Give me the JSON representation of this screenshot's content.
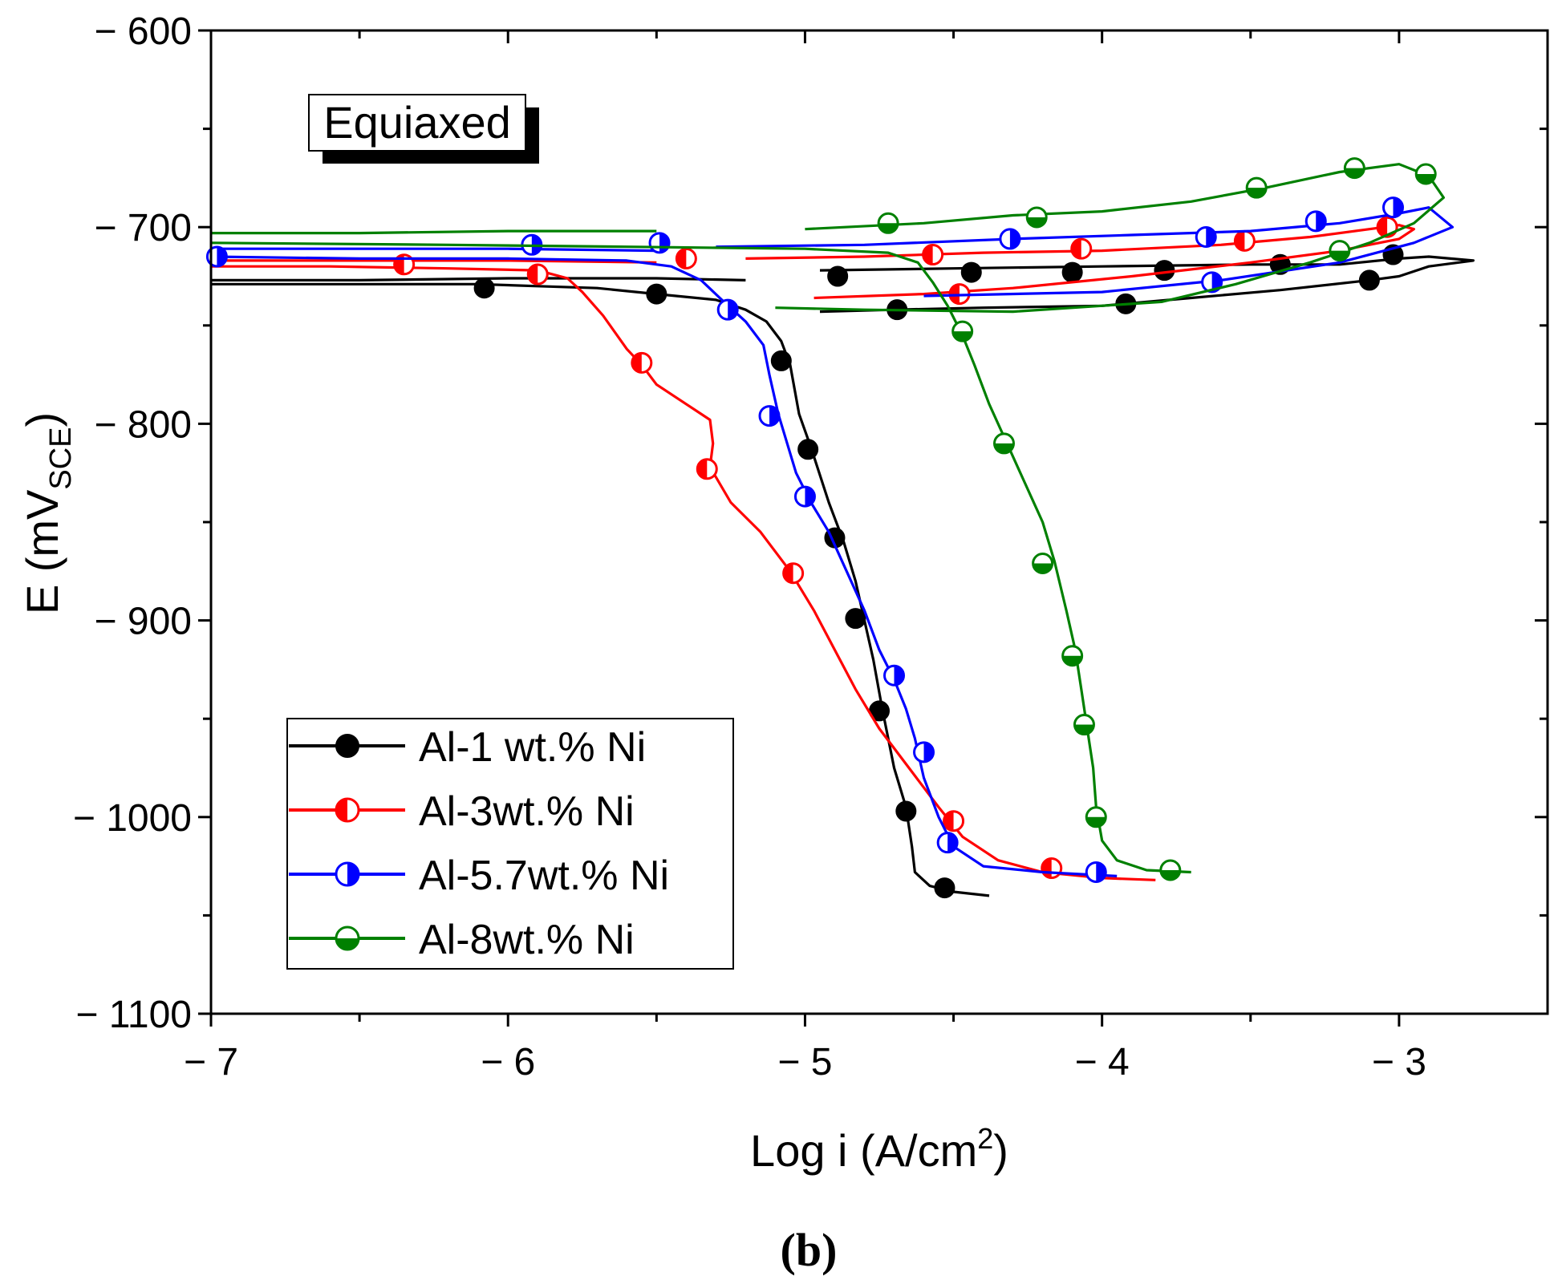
{
  "chart_data": {
    "type": "line",
    "title": "",
    "inset_label": "Equiaxed",
    "panel_label": "(b)",
    "xlabel_pre": "Log i (A/cm",
    "xlabel_sup": "2",
    "xlabel_post": ")",
    "ylabel_pre": "E (mV",
    "ylabel_sub": "SCE",
    "ylabel_post": ")",
    "xlim": [
      -7,
      -2.5
    ],
    "ylim": [
      -1100,
      -600
    ],
    "x_ticks": [
      -7,
      -6,
      -5,
      -4,
      -3
    ],
    "x_tick_labels": [
      "− 7",
      "− 6",
      "− 5",
      "− 4",
      "− 3"
    ],
    "y_ticks": [
      -600,
      -700,
      -800,
      -900,
      -1000,
      -1100
    ],
    "y_tick_labels": [
      "− 600",
      "− 700",
      "− 800",
      "− 900",
      "− 1000",
      "− 1100"
    ],
    "legend_position": "bottom-left",
    "series": [
      {
        "name": "Al-1 wt.% Ni",
        "color": "#000000",
        "marker": "filled",
        "forward": [
          [
            -4.38,
            -1040
          ],
          [
            -4.5,
            -1038
          ],
          [
            -4.58,
            -1035
          ],
          [
            -4.63,
            -1028
          ],
          [
            -4.64,
            -1015
          ],
          [
            -4.66,
            -995
          ],
          [
            -4.7,
            -975
          ],
          [
            -4.74,
            -945
          ],
          [
            -4.77,
            -920
          ],
          [
            -4.8,
            -900
          ],
          [
            -4.83,
            -880
          ],
          [
            -4.87,
            -860
          ],
          [
            -4.92,
            -840
          ],
          [
            -4.98,
            -812
          ],
          [
            -5.02,
            -795
          ],
          [
            -5.05,
            -770
          ],
          [
            -5.08,
            -758
          ],
          [
            -5.13,
            -748
          ],
          [
            -5.2,
            -742
          ],
          [
            -5.3,
            -737
          ],
          [
            -5.5,
            -734
          ],
          [
            -5.7,
            -731
          ],
          [
            -5.9,
            -730
          ],
          [
            -6.1,
            -729
          ],
          [
            -6.5,
            -729
          ],
          [
            -7.0,
            -729
          ]
        ],
        "reverse": [
          [
            -5.2,
            -727
          ],
          [
            -5.5,
            -726
          ],
          [
            -6.0,
            -726
          ],
          [
            -6.5,
            -727
          ],
          [
            -7.0,
            -727
          ]
        ],
        "upper": [
          [
            -4.95,
            -722
          ],
          [
            -4.5,
            -721
          ],
          [
            -4.0,
            -720
          ],
          [
            -3.5,
            -719
          ],
          [
            -3.2,
            -719
          ],
          [
            -3.0,
            -716
          ],
          [
            -2.9,
            -715
          ],
          [
            -2.75,
            -717
          ],
          [
            -2.9,
            -720
          ],
          [
            -3.0,
            -725
          ],
          [
            -3.1,
            -727
          ],
          [
            -3.4,
            -732
          ],
          [
            -3.7,
            -736
          ],
          [
            -4.0,
            -740
          ],
          [
            -4.4,
            -741
          ],
          [
            -4.7,
            -742
          ],
          [
            -4.95,
            -743
          ]
        ],
        "markers": [
          [
            -6.08,
            -731
          ],
          [
            -5.5,
            -734
          ],
          [
            -5.08,
            -768
          ],
          [
            -4.99,
            -813
          ],
          [
            -4.9,
            -858
          ],
          [
            -4.83,
            -899
          ],
          [
            -4.75,
            -946
          ],
          [
            -4.66,
            -997
          ],
          [
            -4.53,
            -1036
          ],
          [
            -4.89,
            -725
          ],
          [
            -4.44,
            -723
          ],
          [
            -4.1,
            -723
          ],
          [
            -3.79,
            -722
          ],
          [
            -3.4,
            -719
          ],
          [
            -3.02,
            -714
          ],
          [
            -3.1,
            -727
          ],
          [
            -3.92,
            -739
          ],
          [
            -4.69,
            -742
          ]
        ]
      },
      {
        "name": "Al-3wt.% Ni",
        "color": "#ff0000",
        "marker": "half-left",
        "forward": [
          [
            -3.82,
            -1032
          ],
          [
            -4.0,
            -1031
          ],
          [
            -4.2,
            -1028
          ],
          [
            -4.35,
            -1022
          ],
          [
            -4.47,
            -1010
          ],
          [
            -4.55,
            -995
          ],
          [
            -4.65,
            -975
          ],
          [
            -4.75,
            -955
          ],
          [
            -4.83,
            -935
          ],
          [
            -4.9,
            -915
          ],
          [
            -4.97,
            -895
          ],
          [
            -5.05,
            -875
          ],
          [
            -5.15,
            -855
          ],
          [
            -5.25,
            -840
          ],
          [
            -5.32,
            -822
          ],
          [
            -5.31,
            -810
          ],
          [
            -5.32,
            -798
          ],
          [
            -5.4,
            -790
          ],
          [
            -5.5,
            -780
          ],
          [
            -5.55,
            -770
          ],
          [
            -5.6,
            -762
          ],
          [
            -5.68,
            -745
          ],
          [
            -5.75,
            -733
          ],
          [
            -5.8,
            -726
          ],
          [
            -5.9,
            -722
          ],
          [
            -6.2,
            -721
          ],
          [
            -6.6,
            -720
          ],
          [
            -7.0,
            -720
          ]
        ],
        "reverse": [
          [
            -5.5,
            -718
          ],
          [
            -6.0,
            -717
          ],
          [
            -6.5,
            -717
          ],
          [
            -7.0,
            -717
          ]
        ],
        "upper": [
          [
            -5.2,
            -716
          ],
          [
            -4.8,
            -715
          ],
          [
            -4.4,
            -713
          ],
          [
            -4.0,
            -712
          ],
          [
            -3.6,
            -709
          ],
          [
            -3.3,
            -705
          ],
          [
            -3.1,
            -701
          ],
          [
            -3.0,
            -699
          ],
          [
            -2.95,
            -701
          ],
          [
            -3.0,
            -706
          ],
          [
            -3.2,
            -712
          ],
          [
            -3.5,
            -718
          ],
          [
            -3.9,
            -725
          ],
          [
            -4.3,
            -731
          ],
          [
            -4.6,
            -734
          ],
          [
            -4.97,
            -736
          ]
        ],
        "markers": [
          [
            -6.35,
            -719
          ],
          [
            -5.9,
            -724
          ],
          [
            -5.55,
            -769
          ],
          [
            -5.33,
            -823
          ],
          [
            -5.04,
            -876
          ],
          [
            -4.5,
            -1002
          ],
          [
            -4.17,
            -1026
          ],
          [
            -5.4,
            -716
          ],
          [
            -4.57,
            -714
          ],
          [
            -4.07,
            -711
          ],
          [
            -3.52,
            -707
          ],
          [
            -3.04,
            -700
          ],
          [
            -4.48,
            -734
          ]
        ]
      },
      {
        "name": "Al-5.7wt.% Ni",
        "color": "#0000ff",
        "marker": "half-right",
        "forward": [
          [
            -3.95,
            -1030
          ],
          [
            -4.2,
            -1028
          ],
          [
            -4.4,
            -1025
          ],
          [
            -4.5,
            -1015
          ],
          [
            -4.55,
            -1000
          ],
          [
            -4.6,
            -980
          ],
          [
            -4.63,
            -960
          ],
          [
            -4.66,
            -945
          ],
          [
            -4.7,
            -930
          ],
          [
            -4.75,
            -915
          ],
          [
            -4.8,
            -895
          ],
          [
            -4.86,
            -875
          ],
          [
            -4.92,
            -855
          ],
          [
            -4.98,
            -840
          ],
          [
            -5.03,
            -825
          ],
          [
            -5.06,
            -810
          ],
          [
            -5.09,
            -795
          ],
          [
            -5.12,
            -775
          ],
          [
            -5.14,
            -760
          ],
          [
            -5.2,
            -748
          ],
          [
            -5.28,
            -737
          ],
          [
            -5.35,
            -727
          ],
          [
            -5.45,
            -720
          ],
          [
            -5.6,
            -717
          ],
          [
            -6.0,
            -716
          ],
          [
            -6.5,
            -716
          ],
          [
            -7.0,
            -715
          ]
        ],
        "reverse": [
          [
            -5.5,
            -712
          ],
          [
            -6.0,
            -711
          ],
          [
            -6.5,
            -711
          ],
          [
            -7.0,
            -711
          ]
        ],
        "upper": [
          [
            -5.3,
            -710
          ],
          [
            -4.8,
            -709
          ],
          [
            -4.3,
            -706
          ],
          [
            -3.9,
            -704
          ],
          [
            -3.5,
            -702
          ],
          [
            -3.2,
            -698
          ],
          [
            -3.0,
            -693
          ],
          [
            -2.9,
            -690
          ],
          [
            -2.82,
            -700
          ],
          [
            -2.95,
            -708
          ],
          [
            -3.2,
            -718
          ],
          [
            -3.6,
            -727
          ],
          [
            -4.0,
            -733
          ],
          [
            -4.6,
            -735
          ]
        ],
        "markers": [
          [
            -6.98,
            -715
          ],
          [
            -5.92,
            -709
          ],
          [
            -5.49,
            -708
          ],
          [
            -5.26,
            -742
          ],
          [
            -5.12,
            -796
          ],
          [
            -5.0,
            -837
          ],
          [
            -4.7,
            -928
          ],
          [
            -4.6,
            -967
          ],
          [
            -4.52,
            -1013
          ],
          [
            -4.02,
            -1028
          ],
          [
            -4.31,
            -706
          ],
          [
            -3.65,
            -705
          ],
          [
            -3.28,
            -697
          ],
          [
            -3.02,
            -690
          ],
          [
            -3.63,
            -728
          ]
        ]
      },
      {
        "name": "Al-8wt.% Ni",
        "color": "#008000",
        "marker": "half-bottom",
        "forward": [
          [
            -3.7,
            -1028
          ],
          [
            -3.85,
            -1027
          ],
          [
            -3.95,
            -1022
          ],
          [
            -4.0,
            -1012
          ],
          [
            -4.02,
            -995
          ],
          [
            -4.03,
            -975
          ],
          [
            -4.05,
            -955
          ],
          [
            -4.07,
            -935
          ],
          [
            -4.09,
            -915
          ],
          [
            -4.12,
            -895
          ],
          [
            -4.16,
            -870
          ],
          [
            -4.2,
            -850
          ],
          [
            -4.26,
            -830
          ],
          [
            -4.32,
            -810
          ],
          [
            -4.38,
            -790
          ],
          [
            -4.43,
            -770
          ],
          [
            -4.47,
            -755
          ],
          [
            -4.52,
            -740
          ],
          [
            -4.57,
            -728
          ],
          [
            -4.62,
            -718
          ],
          [
            -4.72,
            -713
          ],
          [
            -5.0,
            -711
          ],
          [
            -5.6,
            -710
          ],
          [
            -6.2,
            -709
          ],
          [
            -7.0,
            -708
          ]
        ],
        "reverse": [
          [
            -5.5,
            -702
          ],
          [
            -6.0,
            -702
          ],
          [
            -6.5,
            -703
          ],
          [
            -7.0,
            -703
          ]
        ],
        "upper": [
          [
            -5.0,
            -701
          ],
          [
            -4.6,
            -698
          ],
          [
            -4.3,
            -694
          ],
          [
            -4.0,
            -692
          ],
          [
            -3.7,
            -687
          ],
          [
            -3.45,
            -680
          ],
          [
            -3.2,
            -672
          ],
          [
            -3.0,
            -668
          ],
          [
            -2.9,
            -674
          ],
          [
            -2.85,
            -685
          ],
          [
            -2.95,
            -698
          ],
          [
            -3.1,
            -708
          ],
          [
            -3.3,
            -718
          ],
          [
            -3.55,
            -729
          ],
          [
            -3.8,
            -738
          ],
          [
            -4.3,
            -743
          ],
          [
            -4.8,
            -742
          ],
          [
            -5.1,
            -741
          ]
        ],
        "markers": [
          [
            -4.72,
            -698
          ],
          [
            -4.22,
            -695
          ],
          [
            -3.48,
            -680
          ],
          [
            -3.15,
            -670
          ],
          [
            -2.91,
            -673
          ],
          [
            -3.2,
            -712
          ],
          [
            -4.47,
            -753
          ],
          [
            -4.33,
            -810
          ],
          [
            -4.2,
            -871
          ],
          [
            -4.1,
            -918
          ],
          [
            -4.06,
            -953
          ],
          [
            -4.02,
            -1000
          ],
          [
            -3.77,
            -1027
          ]
        ]
      }
    ]
  }
}
